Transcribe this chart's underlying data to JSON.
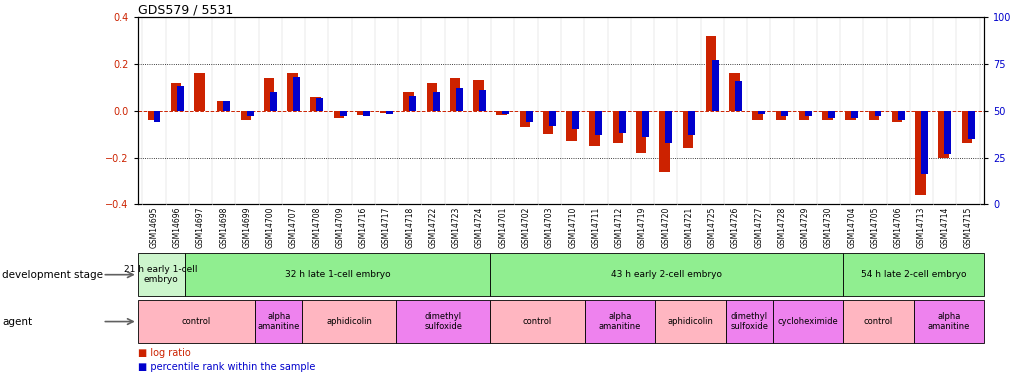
{
  "title": "GDS579 / 5531",
  "samples": [
    "GSM14695",
    "GSM14696",
    "GSM14697",
    "GSM14698",
    "GSM14699",
    "GSM14700",
    "GSM14707",
    "GSM14708",
    "GSM14709",
    "GSM14716",
    "GSM14717",
    "GSM14718",
    "GSM14722",
    "GSM14723",
    "GSM14724",
    "GSM14701",
    "GSM14702",
    "GSM14703",
    "GSM14710",
    "GSM14711",
    "GSM14712",
    "GSM14719",
    "GSM14720",
    "GSM14721",
    "GSM14725",
    "GSM14726",
    "GSM14727",
    "GSM14728",
    "GSM14729",
    "GSM14730",
    "GSM14704",
    "GSM14705",
    "GSM14706",
    "GSM14713",
    "GSM14714",
    "GSM14715"
  ],
  "log_ratio": [
    -0.04,
    0.12,
    0.16,
    0.04,
    -0.04,
    0.14,
    0.16,
    0.06,
    -0.03,
    -0.02,
    -0.01,
    0.08,
    0.12,
    0.14,
    0.13,
    -0.02,
    -0.07,
    -0.1,
    -0.13,
    -0.15,
    -0.14,
    -0.18,
    -0.26,
    -0.16,
    0.32,
    0.16,
    -0.04,
    -0.04,
    -0.04,
    -0.04,
    -0.04,
    -0.04,
    -0.05,
    -0.36,
    -0.2,
    -0.14
  ],
  "percentile": [
    44,
    63,
    50,
    55,
    47,
    60,
    68,
    57,
    47,
    47,
    48,
    58,
    60,
    62,
    61,
    48,
    44,
    42,
    40,
    37,
    38,
    36,
    33,
    37,
    77,
    66,
    48,
    47,
    47,
    46,
    46,
    47,
    45,
    16,
    27,
    35
  ],
  "dev_groups": [
    {
      "label": "21 h early 1-cell\nembryo",
      "start": 0,
      "end": 2,
      "color": "#ccf5cc"
    },
    {
      "label": "32 h late 1-cell embryo",
      "start": 2,
      "end": 15,
      "color": "#90ee90"
    },
    {
      "label": "43 h early 2-cell embryo",
      "start": 15,
      "end": 30,
      "color": "#90ee90"
    },
    {
      "label": "54 h late 2-cell embryo",
      "start": 30,
      "end": 36,
      "color": "#90ee90"
    }
  ],
  "agent_groups": [
    {
      "label": "control",
      "start": 0,
      "end": 5,
      "color": "#ffb6c1"
    },
    {
      "label": "alpha\namanitine",
      "start": 5,
      "end": 7,
      "color": "#ee82ee"
    },
    {
      "label": "aphidicolin",
      "start": 7,
      "end": 11,
      "color": "#ffb6c1"
    },
    {
      "label": "dimethyl\nsulfoxide",
      "start": 11,
      "end": 15,
      "color": "#ee82ee"
    },
    {
      "label": "control",
      "start": 15,
      "end": 19,
      "color": "#ffb6c1"
    },
    {
      "label": "alpha\namanitine",
      "start": 19,
      "end": 22,
      "color": "#ee82ee"
    },
    {
      "label": "aphidicolin",
      "start": 22,
      "end": 25,
      "color": "#ffb6c1"
    },
    {
      "label": "dimethyl\nsulfoxide",
      "start": 25,
      "end": 27,
      "color": "#ee82ee"
    },
    {
      "label": "cycloheximide",
      "start": 27,
      "end": 30,
      "color": "#ee82ee"
    },
    {
      "label": "control",
      "start": 30,
      "end": 33,
      "color": "#ffb6c1"
    },
    {
      "label": "alpha\namanitine",
      "start": 33,
      "end": 36,
      "color": "#ee82ee"
    }
  ],
  "ylim_left": [
    -0.4,
    0.4
  ],
  "ylim_right": [
    0,
    100
  ],
  "yticks_left": [
    -0.4,
    -0.2,
    0.0,
    0.2,
    0.4
  ],
  "yticks_right": [
    0,
    25,
    50,
    75,
    100
  ],
  "red_color": "#cc2200",
  "blue_color": "#0000cc",
  "bg_color": "#ffffff",
  "xticklabel_bg": "#d8d8d8",
  "dev_border_color": "#000000",
  "arrow_color": "#808080"
}
